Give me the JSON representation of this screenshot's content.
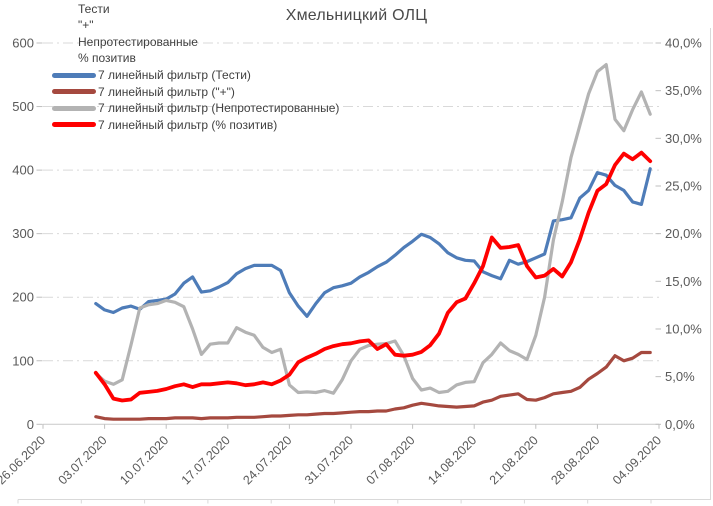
{
  "title": "Хмельницкий ОЛЦ",
  "corner_labels": [
    "Тести",
    "\"+\"",
    "Непротестированные",
    "% позитив"
  ],
  "legend": [
    {
      "key": "tests",
      "label": "7 линейный фильтр (Тести)"
    },
    {
      "key": "plus",
      "label": "7 линейный фильтр (\"+\")"
    },
    {
      "key": "untested",
      "label": "7 линейный фильтр (Непротестированные)"
    },
    {
      "key": "positive-rate",
      "label": "7 линейный фильтр (% позитив)"
    }
  ],
  "colors": {
    "blue": "#4E7CB8",
    "brick": "#A5493F",
    "gray": "#B3B3B3",
    "red": "#FF0000",
    "gridline": "#D9D9D9",
    "zero_axis": "#C9C9C9",
    "tick": "#BFBFBF",
    "axis_text": "#595959",
    "text": "#404040"
  },
  "chart_data": {
    "type": "line",
    "title": "Хмельницкий ОЛЦ",
    "grid": true,
    "legend_position": "top-left-inside",
    "x_axis": {
      "start": "26.06.2020",
      "end": "04.09.2020",
      "tick_interval_days": 7,
      "tick_labels": [
        "26.06.2020",
        "03.07.2020",
        "10.07.2020",
        "17.07.2020",
        "24.07.2020",
        "31.07.2020",
        "07.08.2020",
        "14.08.2020",
        "21.08.2020",
        "28.08.2020",
        "04.09.2020"
      ]
    },
    "y_axis_left": {
      "range": [
        0,
        600
      ],
      "step": 100,
      "tick_labels": [
        "600",
        "500",
        "400",
        "300",
        "200",
        "100",
        "0"
      ]
    },
    "y_axis_right": {
      "range_percent": [
        0,
        40
      ],
      "step_percent": 5,
      "tick_labels": [
        "40,0%",
        "35,0%",
        "30,0%",
        "25,0%",
        "20,0%",
        "15,0%",
        "10,0%",
        "5,0%",
        "0,0%"
      ]
    },
    "data_start_date": "02.07.2020",
    "data_interval": "daily",
    "series": [
      {
        "key": "tests",
        "name": "7 линейный фильтр (Тести)",
        "axis": "left",
        "color_ref": "blue",
        "width": 3.2,
        "values": [
          190,
          180,
          176,
          183,
          186,
          181,
          193,
          195,
          197,
          205,
          222,
          232,
          208,
          210,
          216,
          223,
          237,
          245,
          250,
          250,
          250,
          242,
          207,
          186,
          170,
          190,
          207,
          215,
          218,
          222,
          232,
          239,
          248,
          255,
          266,
          278,
          288,
          299,
          294,
          284,
          270,
          262,
          258,
          257,
          240,
          234,
          229,
          258,
          252,
          256,
          262,
          268,
          320,
          322,
          325,
          356,
          368,
          396,
          392,
          376,
          368,
          350,
          346,
          402
        ]
      },
      {
        "key": "plus",
        "name": "7 линейный фильтр (\"+\")",
        "axis": "left",
        "color_ref": "brick",
        "width": 3.2,
        "values": [
          12,
          9,
          8,
          8,
          8,
          8,
          9,
          9,
          9,
          10,
          10,
          10,
          9,
          10,
          10,
          10,
          11,
          11,
          11,
          12,
          13,
          13,
          14,
          15,
          15,
          16,
          17,
          17,
          18,
          19,
          20,
          20,
          21,
          21,
          24,
          26,
          30,
          33,
          31,
          29,
          28,
          27,
          28,
          29,
          35,
          38,
          44,
          46,
          48,
          39,
          38,
          42,
          48,
          50,
          52,
          58,
          71,
          80,
          90,
          108,
          100,
          104,
          113,
          113
        ]
      },
      {
        "key": "untested",
        "name": "7 линейный фильтр (Непротестированные)",
        "axis": "left",
        "color_ref": "gray",
        "width": 3.2,
        "values": [
          80,
          68,
          63,
          70,
          125,
          183,
          188,
          190,
          195,
          192,
          185,
          150,
          110,
          126,
          128,
          128,
          152,
          145,
          140,
          121,
          113,
          118,
          62,
          50,
          51,
          50,
          53,
          49,
          70,
          100,
          118,
          124,
          126,
          127,
          131,
          108,
          72,
          54,
          57,
          50,
          52,
          62,
          66,
          67,
          97,
          110,
          128,
          116,
          110,
          102,
          140,
          200,
          290,
          350,
          420,
          470,
          520,
          555,
          566,
          480,
          462,
          495,
          523,
          488
        ]
      },
      {
        "key": "positive-rate",
        "name": "7 линейный фильтр (% позитив)",
        "axis": "right",
        "color_ref": "red",
        "width": 3.8,
        "values": [
          5.4,
          4.2,
          2.7,
          2.5,
          2.6,
          3.3,
          3.4,
          3.5,
          3.7,
          4.0,
          4.2,
          3.9,
          4.2,
          4.2,
          4.3,
          4.4,
          4.3,
          4.1,
          4.2,
          4.4,
          4.2,
          4.6,
          5.2,
          6.5,
          7.0,
          7.4,
          7.9,
          8.2,
          8.4,
          8.5,
          8.7,
          8.8,
          7.9,
          8.4,
          7.3,
          7.2,
          7.3,
          7.6,
          8.3,
          9.5,
          11.7,
          12.8,
          13.2,
          14.8,
          16.6,
          19.6,
          18.5,
          18.6,
          18.8,
          16.6,
          15.4,
          15.6,
          16.3,
          15.5,
          17.0,
          19.4,
          22.2,
          24.5,
          25.2,
          27.2,
          28.4,
          27.8,
          28.5,
          27.6
        ]
      }
    ]
  }
}
